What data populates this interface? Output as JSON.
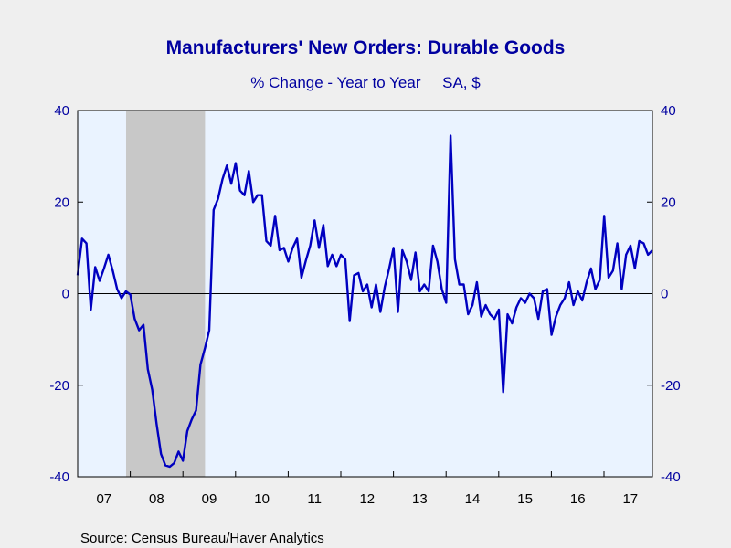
{
  "chart_data": {
    "type": "line",
    "title": "Manufacturers' New Orders: Durable Goods",
    "subtitle": "% Change - Year to Year     SA, $",
    "source": "Source:  Census Bureau/Haver Analytics",
    "ylim": [
      -40,
      40
    ],
    "yticks": [
      -40,
      -20,
      0,
      20,
      40
    ],
    "ytick_labels": [
      "-40",
      "-20",
      "0",
      "20",
      "40"
    ],
    "xlim": [
      2007.0,
      2017.92
    ],
    "xticks": [
      2007,
      2008,
      2009,
      2010,
      2011,
      2012,
      2013,
      2014,
      2015,
      2016,
      2017
    ],
    "xtick_labels": [
      "07",
      "08",
      "09",
      "10",
      "11",
      "12",
      "13",
      "14",
      "15",
      "16",
      "17"
    ],
    "grid": false,
    "recession_shading": [
      {
        "start": 2007.92,
        "end": 2009.42
      }
    ],
    "colors": {
      "line": "#0000c0",
      "plot_bg": "#eaf3ff",
      "recession": "#c8c8c8",
      "text": "#0000a0",
      "page_bg": "#efefef"
    },
    "series": [
      {
        "values": [
          4.0,
          12.0,
          11.0,
          -3.5,
          5.8,
          2.8,
          5.5,
          8.5,
          5.0,
          1.0,
          -1.0,
          0.5,
          -0.2,
          -5.5,
          -8.0,
          -6.8,
          -16.5,
          -21.0,
          -28.5,
          -35.0,
          -37.5,
          -37.8,
          -37.0,
          -34.5,
          -36.5,
          -30.0,
          -27.5,
          -25.5,
          -15.5,
          -12.0,
          -8.0,
          18.3,
          20.7,
          25.0,
          28.0,
          24.0,
          28.5,
          22.5,
          21.5,
          26.8,
          20.0,
          21.5,
          21.5,
          11.5,
          10.5,
          17.0,
          9.5,
          10.0,
          7.0,
          10.0,
          12.0,
          3.5,
          7.2,
          10.5,
          16.0,
          10.0,
          15.0,
          6.0,
          8.5,
          6.0,
          8.5,
          7.5,
          -6.0,
          4.0,
          4.5,
          0.5,
          2.0,
          -3.0,
          2.0,
          -4.0,
          1.5,
          5.5,
          10.0,
          -4.0,
          9.5,
          7.0,
          3.0,
          9.0,
          0.5,
          2.0,
          0.5,
          10.5,
          7.0,
          1.0,
          -2.0,
          34.5,
          7.5,
          2.0,
          2.0,
          -4.5,
          -2.5,
          2.5,
          -5.0,
          -2.5,
          -4.5,
          -5.5,
          -3.5,
          -21.5,
          -4.5,
          -6.5,
          -3.0,
          -1.0,
          -2.0,
          0.0,
          -1.0,
          -5.5,
          0.5,
          1.0,
          -9.0,
          -5.0,
          -2.5,
          -1.0,
          2.5,
          -2.5,
          0.5,
          -1.5,
          2.5,
          5.5,
          1.0,
          3.0,
          17.0,
          3.5,
          5.0,
          11.0,
          1.0,
          8.5,
          10.5,
          5.5,
          11.5,
          11.0,
          8.5,
          9.5
        ]
      }
    ]
  }
}
